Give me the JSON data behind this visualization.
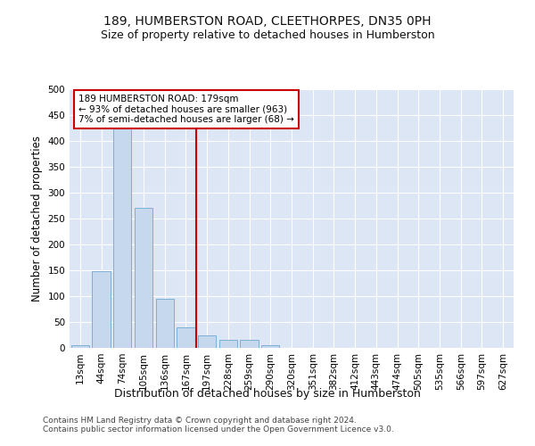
{
  "title": "189, HUMBERSTON ROAD, CLEETHORPES, DN35 0PH",
  "subtitle": "Size of property relative to detached houses in Humberston",
  "xlabel": "Distribution of detached houses by size in Humberston",
  "ylabel": "Number of detached properties",
  "categories": [
    "13sqm",
    "44sqm",
    "74sqm",
    "105sqm",
    "136sqm",
    "167sqm",
    "197sqm",
    "228sqm",
    "259sqm",
    "290sqm",
    "320sqm",
    "351sqm",
    "382sqm",
    "412sqm",
    "443sqm",
    "474sqm",
    "505sqm",
    "535sqm",
    "566sqm",
    "597sqm",
    "627sqm"
  ],
  "bar_values": [
    5,
    148,
    430,
    270,
    95,
    40,
    25,
    15,
    15,
    5,
    0,
    0,
    0,
    0,
    0,
    0,
    0,
    0,
    0,
    0,
    0
  ],
  "bar_color": "#c5d8ee",
  "bar_edge_color": "#7bafd4",
  "vline_x": 5.5,
  "vline_color": "#cc0000",
  "annotation_text": "189 HUMBERSTON ROAD: 179sqm\n← 93% of detached houses are smaller (963)\n7% of semi-detached houses are larger (68) →",
  "annotation_box_color": "#ffffff",
  "annotation_box_edge": "#cc0000",
  "bg_color": "#dce6f5",
  "grid_color": "#ffffff",
  "ylim": [
    0,
    500
  ],
  "yticks": [
    0,
    50,
    100,
    150,
    200,
    250,
    300,
    350,
    400,
    450,
    500
  ],
  "footer_line1": "Contains HM Land Registry data © Crown copyright and database right 2024.",
  "footer_line2": "Contains public sector information licensed under the Open Government Licence v3.0.",
  "title_fontsize": 10,
  "subtitle_fontsize": 9,
  "tick_fontsize": 7.5,
  "ylabel_fontsize": 8.5,
  "xlabel_fontsize": 9,
  "footer_fontsize": 6.5,
  "annot_fontsize": 7.5
}
